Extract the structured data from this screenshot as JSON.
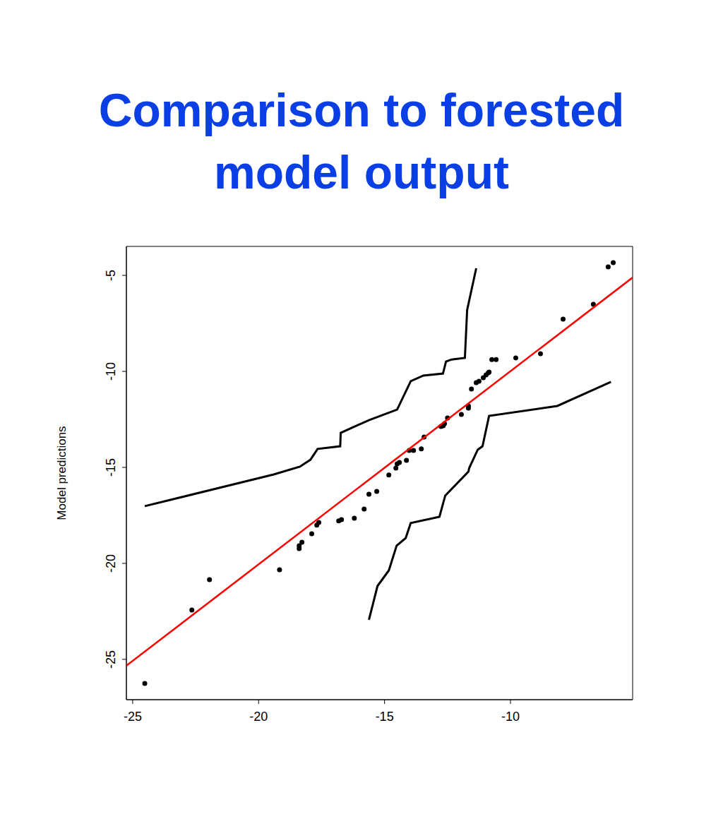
{
  "chart_data": {
    "type": "scatter",
    "title": "Comparison to forested model output",
    "y_label": "Model predictions",
    "xlim": [
      -25.25,
      -5.15
    ],
    "ylim": [
      -27.1,
      -3.49
    ],
    "xticks": [
      -25,
      -20,
      -15,
      -10
    ],
    "yticks": [
      -25,
      -20,
      -15,
      -10,
      -5
    ],
    "grid": false,
    "series": [
      {
        "type": "scatter",
        "color": "#000000",
        "marker": "circle",
        "x": [
          -24.52,
          -22.65,
          -21.95,
          -19.17,
          -18.39,
          -18.39,
          -18.28,
          -17.89,
          -17.69,
          -17.61,
          -16.82,
          -16.71,
          -16.2,
          -15.81,
          -15.62,
          -15.31,
          -14.83,
          -14.55,
          -14.5,
          -14.41,
          -14.13,
          -14.02,
          -13.85,
          -13.54,
          -13.43,
          -12.76,
          -12.67,
          -12.62,
          -12.5,
          -11.95,
          -11.67,
          -11.67,
          -11.55,
          -11.36,
          -11.25,
          -11.08,
          -10.97,
          -10.88,
          -10.85,
          -10.74,
          -10.57,
          -9.79,
          -8.81,
          -7.91,
          -6.71,
          -6.12,
          -5.92
        ],
        "values": [
          -26.25,
          -22.43,
          -20.85,
          -20.33,
          -19.23,
          -19.08,
          -18.9,
          -18.46,
          -18.01,
          -17.87,
          -17.79,
          -17.72,
          -17.65,
          -17.17,
          -16.4,
          -16.25,
          -15.4,
          -15.04,
          -14.82,
          -14.74,
          -14.63,
          -14.12,
          -14.12,
          -14.04,
          -13.42,
          -12.87,
          -12.83,
          -12.72,
          -12.43,
          -12.24,
          -11.91,
          -11.8,
          -10.92,
          -10.59,
          -10.51,
          -10.33,
          -10.18,
          -10.07,
          -10.04,
          -9.38,
          -9.38,
          -9.3,
          -9.08,
          -7.28,
          -6.51,
          -4.56,
          -4.34
        ]
      },
      {
        "type": "line",
        "color": "#ff0000",
        "line_style": "solid",
        "x": [
          -25.25,
          -5.15
        ],
        "values": [
          -25.33,
          -5.11
        ]
      },
      {
        "type": "line",
        "color": "#000000",
        "line_style": "solid",
        "x": [
          -24.52,
          -19.4,
          -18.36,
          -17.94,
          -17.66,
          -16.76,
          -16.74,
          -15.62,
          -14.5,
          -13.96,
          -13.46,
          -12.68,
          -12.56,
          -12.34,
          -11.81,
          -11.72,
          -11.36
        ],
        "values": [
          -17.02,
          -15.37,
          -14.96,
          -14.6,
          -14.04,
          -13.9,
          -13.2,
          -12.54,
          -11.99,
          -10.51,
          -10.22,
          -10.11,
          -9.49,
          -9.38,
          -9.3,
          -6.8,
          -4.63
        ]
      },
      {
        "type": "line",
        "color": "#000000",
        "line_style": "solid",
        "x": [
          -15.62,
          -15.28,
          -14.83,
          -14.52,
          -14.16,
          -13.96,
          -12.82,
          -12.59,
          -11.67,
          -11.64,
          -11.3,
          -11.11,
          -10.85,
          -8.14,
          -6.01
        ],
        "values": [
          -22.94,
          -21.18,
          -20.37,
          -19.08,
          -18.68,
          -17.9,
          -17.57,
          -16.47,
          -15.22,
          -15.04,
          -14.08,
          -13.9,
          -12.32,
          -11.8,
          -10.55
        ]
      }
    ]
  }
}
